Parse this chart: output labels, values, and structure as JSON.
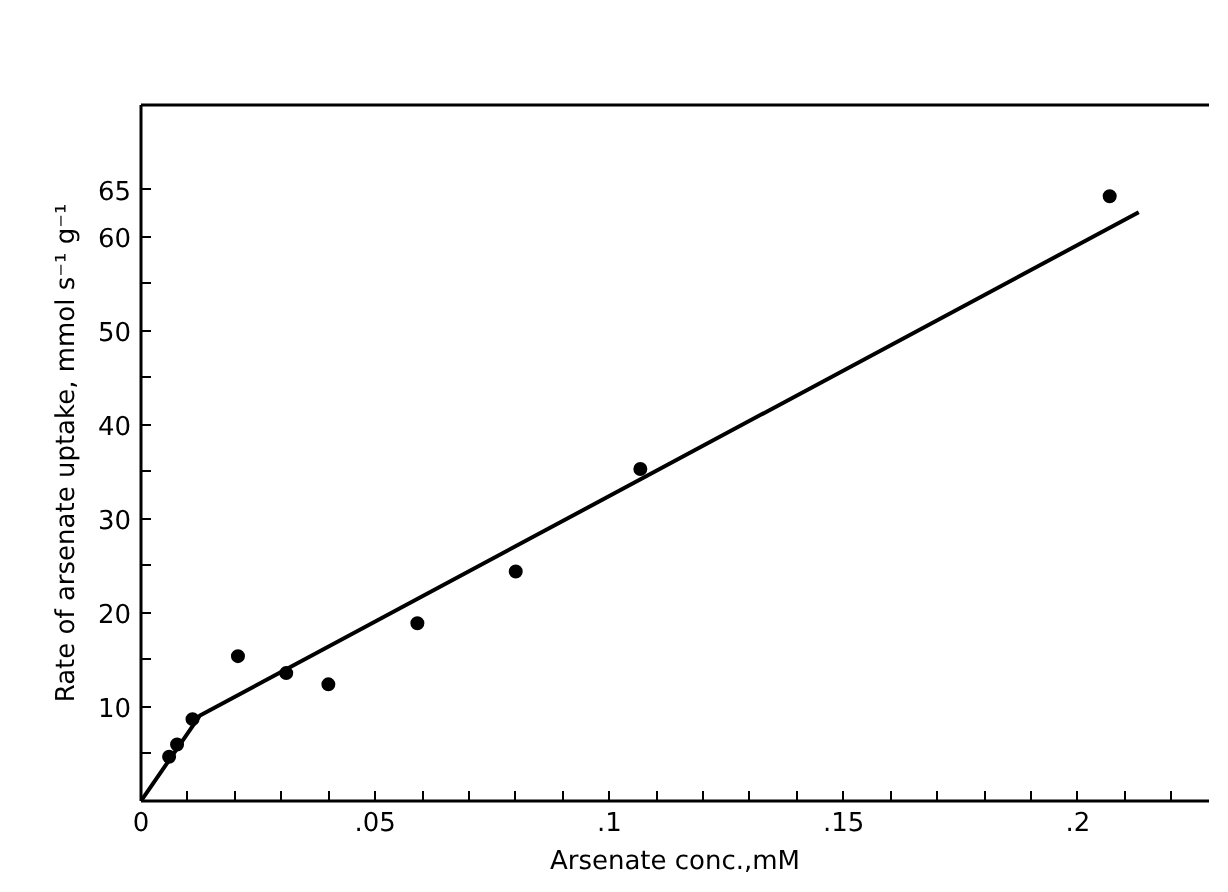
{
  "chart_data": {
    "type": "scatter",
    "xlabel": "Arsenate conc.,mM",
    "ylabel": "Rate of arsenate uptake, mmol s⁻¹ g⁻¹",
    "series": [
      {
        "color": "#000000",
        "marker": "circle",
        "x": [
          0.006,
          0.0077,
          0.011,
          0.0207,
          0.031,
          0.04,
          0.059,
          0.08,
          0.1066,
          0.2068
        ],
        "values": [
          4.7,
          6.0,
          8.7,
          15.4,
          13.6,
          12.4,
          18.9,
          24.4,
          35.3,
          64.3
        ]
      },
      {
        "type": "line",
        "color": "#000000",
        "x": [
          0,
          0.0126,
          0.213
        ],
        "values": [
          0,
          9.1,
          62.6
        ]
      }
    ],
    "xlim": [
      0,
      0.228
    ],
    "ylim": [
      0,
      74
    ],
    "xticks": [
      0,
      {
        "value": 0.01,
        "label": null
      },
      {
        "value": 0.02,
        "label": null
      },
      {
        "value": 0.03,
        "label": null
      },
      {
        "value": 0.04,
        "label": null
      },
      {
        "value": 0.05,
        "label": ".05"
      },
      {
        "value": 0.06,
        "label": null
      },
      {
        "value": 0.07,
        "label": null
      },
      {
        "value": 0.08,
        "label": null
      },
      {
        "value": 0.09,
        "label": null
      },
      {
        "value": 0.1,
        "label": ".1"
      },
      {
        "value": 0.11,
        "label": null
      },
      {
        "value": 0.12,
        "label": null
      },
      {
        "value": 0.13,
        "label": null
      },
      {
        "value": 0.14,
        "label": null
      },
      {
        "value": 0.15,
        "label": ".15"
      },
      {
        "value": 0.16,
        "label": null
      },
      {
        "value": 0.17,
        "label": null
      },
      {
        "value": 0.18,
        "label": null
      },
      {
        "value": 0.19,
        "label": null
      },
      {
        "value": 0.2,
        "label": ".2"
      },
      {
        "value": 0.21,
        "label": null
      },
      {
        "value": 0.22,
        "label": null
      }
    ],
    "yticks": [
      {
        "value": 5,
        "label": null
      },
      10,
      {
        "value": 15,
        "label": null
      },
      20,
      {
        "value": 25,
        "label": null
      },
      30,
      {
        "value": 35,
        "label": null
      },
      40,
      {
        "value": 45,
        "label": null
      },
      50,
      {
        "value": 55,
        "label": null
      },
      60,
      65
    ],
    "grid": false
  }
}
